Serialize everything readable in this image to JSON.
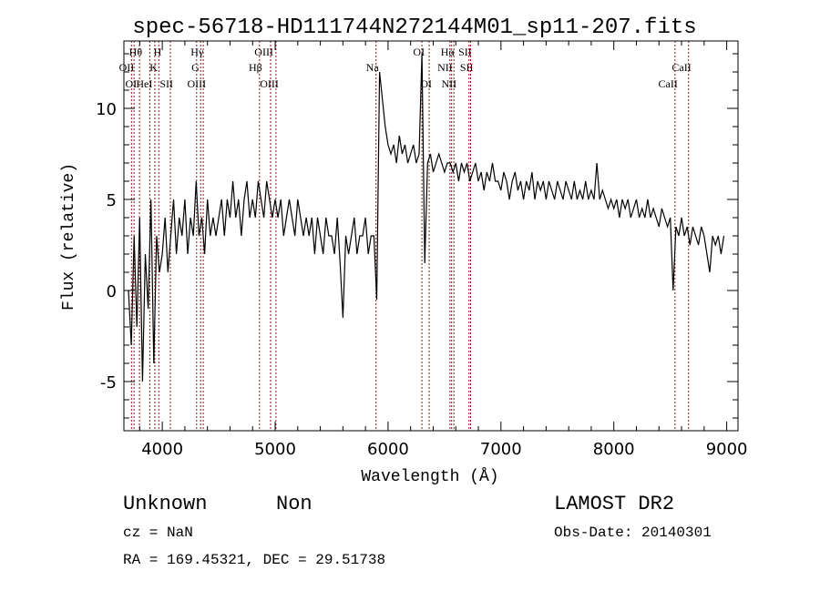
{
  "chart_data": {
    "type": "line",
    "title": "spec-56718-HD111744N272144M01_sp11-207.fits",
    "xlabel": "Wavelength (Å)",
    "ylabel": "Flux (relative)",
    "xlim": [
      3660,
      9100
    ],
    "ylim": [
      -7.7,
      13.7
    ],
    "xticks": [
      4000,
      5000,
      6000,
      7000,
      8000,
      9000
    ],
    "yticks": [
      -5,
      0,
      5,
      10
    ],
    "grid": false,
    "series": [
      {
        "name": "flux",
        "wavelength_start": 3700,
        "wavelength_step": 25,
        "flux": [
          0,
          -3,
          3,
          -2,
          4,
          -5,
          2,
          -1,
          5,
          -4,
          3,
          1,
          2,
          4,
          1,
          3,
          5,
          2,
          4,
          3,
          5,
          2,
          4,
          3,
          6,
          3,
          4,
          2,
          5,
          3,
          4,
          3,
          4,
          5,
          3,
          5,
          4,
          6,
          4,
          5,
          3,
          5,
          6,
          4,
          5,
          4,
          6,
          5,
          4,
          6,
          5,
          4,
          5,
          4,
          5,
          3,
          4,
          5,
          4,
          3,
          5,
          4,
          3,
          4,
          3,
          4,
          2,
          4,
          3,
          2,
          4,
          3,
          3,
          2,
          4,
          1.5,
          -1.5,
          3,
          2,
          3,
          4,
          2,
          3,
          3,
          4,
          2,
          3,
          3,
          -0.5,
          12,
          10.5,
          9,
          8,
          7.5,
          8,
          7,
          8.5,
          7.5,
          8,
          7,
          7.5,
          8,
          7,
          7.5,
          13,
          1.5,
          7,
          7.5,
          6.5,
          7,
          7.5,
          7,
          6.5,
          7,
          7,
          6.5,
          7,
          6,
          7,
          6.5,
          7,
          6,
          6.5,
          7,
          6,
          6.5,
          5.5,
          6.5,
          6,
          7,
          6,
          6,
          5.5,
          6.5,
          6,
          5,
          6,
          6.5,
          5.5,
          6,
          5,
          6,
          5.5,
          6.5,
          5,
          6,
          5.5,
          6,
          5,
          6,
          5.5,
          5,
          6,
          5.5,
          5,
          6,
          5.5,
          5,
          6,
          5,
          5.5,
          5,
          6,
          5,
          5.5,
          5,
          7,
          5,
          5.5,
          5,
          4.5,
          5,
          4.5,
          5,
          4,
          5,
          4.5,
          5,
          4,
          4.5,
          5,
          4,
          4.5,
          4,
          5,
          4,
          4.5,
          4,
          3.5,
          4.5,
          4,
          3.5,
          4,
          0,
          3.5,
          3,
          4,
          3,
          3.5,
          2.5,
          3.5,
          3,
          2.5,
          3.5,
          3,
          2,
          1,
          3,
          2.5,
          3,
          2,
          3
        ]
      }
    ],
    "lines": [
      {
        "label": "OII",
        "wavelength": 3727,
        "row": 1
      },
      {
        "label": "OI",
        "wavelength": 3750,
        "row": 2
      },
      {
        "label": "Hθ",
        "wavelength": 3798,
        "row": 0
      },
      {
        "label": "HeI",
        "wavelength": 3889,
        "row": 2
      },
      {
        "label": "K",
        "wavelength": 3934,
        "row": 1
      },
      {
        "label": "H",
        "wavelength": 3969,
        "row": 0
      },
      {
        "label": "SII",
        "wavelength": 4072,
        "row": 2
      },
      {
        "label": "G",
        "wavelength": 4304,
        "row": 1
      },
      {
        "label": "Hγ",
        "wavelength": 4340,
        "row": 0
      },
      {
        "label": "OIII",
        "wavelength": 4363,
        "row": 2
      },
      {
        "label": "Hβ",
        "wavelength": 4861,
        "row": 1
      },
      {
        "label": "OIII",
        "wavelength": 4959,
        "row": 0
      },
      {
        "label": "OIII",
        "wavelength": 5007,
        "row": 2
      },
      {
        "label": "Na",
        "wavelength": 5893,
        "row": 1
      },
      {
        "label": "OI",
        "wavelength": 6300,
        "row": 0
      },
      {
        "label": "OI",
        "wavelength": 6364,
        "row": 2
      },
      {
        "label": "NII",
        "wavelength": 6548,
        "row": 1
      },
      {
        "label": "Hα",
        "wavelength": 6563,
        "row": 0
      },
      {
        "label": "NII",
        "wavelength": 6583,
        "row": 2
      },
      {
        "label": "SII",
        "wavelength": 6717,
        "row": 0
      },
      {
        "label": "SII",
        "wavelength": 6731,
        "row": 1
      },
      {
        "label": "CaII",
        "wavelength": 8542,
        "row": 2
      },
      {
        "label": "CaII",
        "wavelength": 8662,
        "row": 1
      }
    ]
  },
  "info": {
    "class": "Unknown",
    "subclass": "Non",
    "cz": "cz = NaN",
    "radec": "RA = 169.45321, DEC =  29.51738",
    "survey": "LAMOST DR2",
    "obs_date": "Obs-Date: 20140301"
  },
  "colors": {
    "spectrum": "#000000",
    "line_marker": "#8b1a1a"
  }
}
